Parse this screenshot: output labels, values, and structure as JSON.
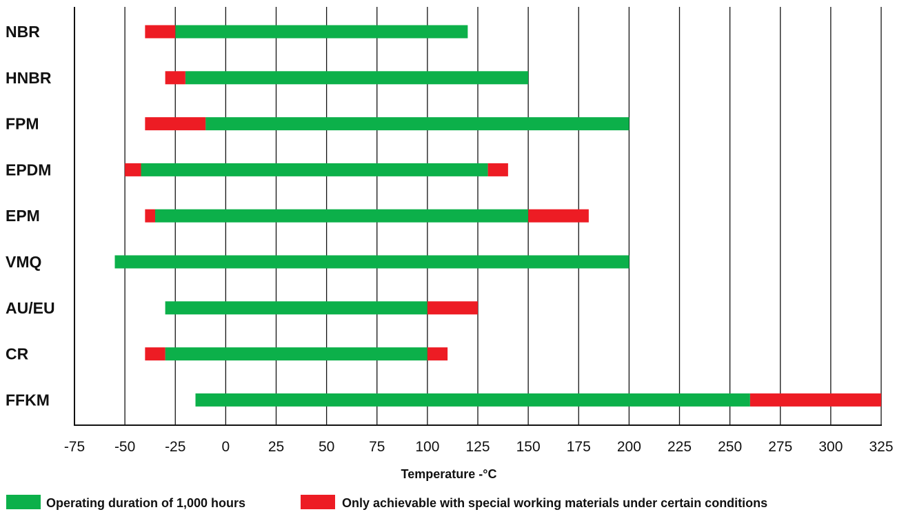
{
  "chart_data": {
    "type": "bar",
    "orientation": "horizontal",
    "xlabel": "Temperature -°C",
    "xlim": [
      -75,
      325
    ],
    "xticks": [
      -75,
      -50,
      -25,
      0,
      25,
      50,
      75,
      100,
      125,
      150,
      175,
      200,
      225,
      250,
      275,
      300,
      325
    ],
    "grid": true,
    "legend_position": "bottom",
    "categories": [
      "NBR",
      "HNBR",
      "FPM",
      "EPDM",
      "EPM",
      "VMQ",
      "AU/EU",
      "CR",
      "FFKM"
    ],
    "series": [
      {
        "name": "Operating duration of 1,000 hours",
        "color": "#0cb04a",
        "ranges": [
          [
            -25,
            120
          ],
          [
            -20,
            150
          ],
          [
            -10,
            200
          ],
          [
            -42,
            130
          ],
          [
            -35,
            150
          ],
          [
            -55,
            200
          ],
          [
            -30,
            100
          ],
          [
            -30,
            100
          ],
          [
            -15,
            260
          ]
        ]
      },
      {
        "name": "Only achievable with special working materials under certain conditions",
        "color": "#ed1c24",
        "ranges": [
          [
            [
              -40,
              -25
            ]
          ],
          [
            [
              -30,
              -20
            ]
          ],
          [
            [
              -40,
              -10
            ]
          ],
          [
            [
              -50,
              -42
            ],
            [
              130,
              140
            ]
          ],
          [
            [
              -40,
              -35
            ],
            [
              150,
              180
            ]
          ],
          [],
          [
            [
              100,
              125
            ]
          ],
          [
            [
              -40,
              -30
            ],
            [
              100,
              110
            ]
          ],
          [
            [
              260,
              325
            ]
          ]
        ]
      }
    ]
  }
}
